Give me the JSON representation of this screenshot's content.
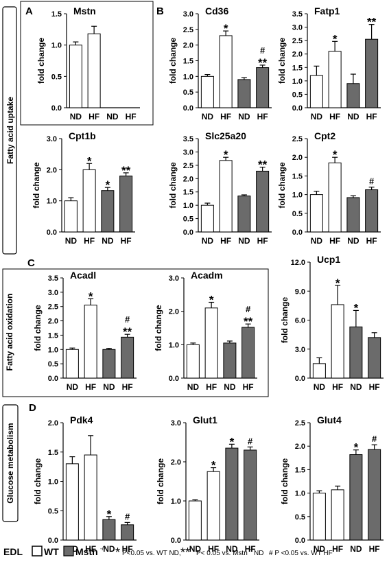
{
  "panel_letters": [
    "A",
    "B",
    "C",
    "D"
  ],
  "side_labels": {
    "fatty_acid_uptake": "Fatty acid uptake",
    "fatty_acid_oxidation": "Fatty acid oxidation",
    "glucose_metabolism": "Glucose metabolism"
  },
  "legend": {
    "tissue": "EDL",
    "wt": "WT",
    "mstn_ko": "Mstn",
    "mstn_ko_sup": "-/-",
    "note_star": "P<0.05 vs. WT ND,",
    "note_double_star": "P< 0.05 vs. Mstn",
    "note_double_star_sup": "-/-",
    "note_double_star_tail": " ND",
    "note_hash": "# P <0.05 vs. WT HF"
  },
  "colors": {
    "wt": "#ffffff",
    "mstn_ko": "#6b6b6b",
    "axis": "#000000",
    "text": "#000000"
  },
  "chart_data": [
    {
      "type": "bar",
      "title": "Mstn",
      "ylabel": "fold change",
      "categories": [
        "ND",
        "HF",
        "ND",
        "HF"
      ],
      "values": [
        1.0,
        1.18,
        null,
        null
      ],
      "errors": [
        0.05,
        0.12,
        null,
        null
      ],
      "groups": [
        "wt",
        "wt",
        "mstn_ko",
        "mstn_ko"
      ],
      "annotations": [
        "",
        "",
        "",
        ""
      ],
      "ylim": [
        0,
        1.5
      ],
      "ticks": [
        "0.0",
        "0.5",
        "1.0",
        "1.5"
      ]
    },
    {
      "type": "bar",
      "title": "Cd36",
      "ylabel": "fold change",
      "categories": [
        "ND",
        "HF",
        "ND",
        "HF"
      ],
      "values": [
        1.0,
        2.3,
        0.9,
        1.28
      ],
      "errors": [
        0.06,
        0.15,
        0.06,
        0.08
      ],
      "groups": [
        "wt",
        "wt",
        "mstn_ko",
        "mstn_ko"
      ],
      "annotations": [
        "",
        "*",
        "",
        "#\n**"
      ],
      "ylim": [
        0,
        3.0
      ],
      "ticks": [
        "0.0",
        "0.5",
        "1.0",
        "1.5",
        "2.0",
        "2.5",
        "3.0"
      ]
    },
    {
      "type": "bar",
      "title": "Fatp1",
      "ylabel": "fold change",
      "categories": [
        "ND",
        "HF",
        "ND",
        "HF"
      ],
      "values": [
        1.2,
        2.1,
        0.9,
        2.55
      ],
      "errors": [
        0.35,
        0.37,
        0.35,
        0.55
      ],
      "groups": [
        "wt",
        "wt",
        "mstn_ko",
        "mstn_ko"
      ],
      "annotations": [
        "",
        "*",
        "",
        "**"
      ],
      "ylim": [
        0,
        3.5
      ],
      "ticks": [
        "0.0",
        "0.5",
        "1.0",
        "1.5",
        "2.0",
        "2.5",
        "3.0",
        "3.5"
      ]
    },
    {
      "type": "bar",
      "title": "Cpt1b",
      "ylabel": "fold change",
      "categories": [
        "ND",
        "HF",
        "ND",
        "HF"
      ],
      "values": [
        1.0,
        2.0,
        1.33,
        1.8
      ],
      "errors": [
        0.1,
        0.2,
        0.1,
        0.1
      ],
      "groups": [
        "wt",
        "wt",
        "mstn_ko",
        "mstn_ko"
      ],
      "annotations": [
        "",
        "*",
        "*",
        "**"
      ],
      "ylim": [
        0,
        3.0
      ],
      "ticks": [
        "0.0",
        "1.0",
        "2.0",
        "3.0"
      ]
    },
    {
      "type": "bar",
      "title": "Slc25a20",
      "ylabel": "fold change",
      "categories": [
        "ND",
        "HF",
        "ND",
        "HF"
      ],
      "values": [
        1.0,
        2.68,
        1.35,
        2.28
      ],
      "errors": [
        0.08,
        0.12,
        0.04,
        0.15
      ],
      "groups": [
        "wt",
        "wt",
        "mstn_ko",
        "mstn_ko"
      ],
      "annotations": [
        "",
        "*",
        "",
        "**"
      ],
      "ylim": [
        0,
        3.5
      ],
      "ticks": [
        "0.0",
        "0.5",
        "1.0",
        "1.5",
        "2.0",
        "2.5",
        "3.0",
        "3.5"
      ]
    },
    {
      "type": "bar",
      "title": "Cpt2",
      "ylabel": "fold change",
      "categories": [
        "ND",
        "HF",
        "ND",
        "HF"
      ],
      "values": [
        1.0,
        1.85,
        0.92,
        1.13
      ],
      "errors": [
        0.09,
        0.15,
        0.05,
        0.07
      ],
      "groups": [
        "wt",
        "wt",
        "mstn_ko",
        "mstn_ko"
      ],
      "annotations": [
        "",
        "*",
        "",
        "#"
      ],
      "ylim": [
        0,
        2.5
      ],
      "ticks": [
        "0.0",
        "0.5",
        "1.0",
        "1.5",
        "2.0",
        "2.5"
      ]
    },
    {
      "type": "bar",
      "title": "Acadl",
      "ylabel": "fold change",
      "categories": [
        "ND",
        "HF",
        "ND",
        "HF"
      ],
      "values": [
        1.0,
        2.55,
        1.0,
        1.43
      ],
      "errors": [
        0.05,
        0.22,
        0.04,
        0.1
      ],
      "groups": [
        "wt",
        "wt",
        "mstn_ko",
        "mstn_ko"
      ],
      "annotations": [
        "",
        "*",
        "",
        "#\n**"
      ],
      "ylim": [
        0,
        3.5
      ],
      "ticks": [
        "0.0",
        "0.5",
        "1.0",
        "1.5",
        "2.0",
        "2.5",
        "3.0",
        "3.5"
      ]
    },
    {
      "type": "bar",
      "title": "Acadm",
      "ylabel": "fold change",
      "categories": [
        "ND",
        "HF",
        "ND",
        "HF"
      ],
      "values": [
        1.0,
        2.1,
        1.05,
        1.52
      ],
      "errors": [
        0.05,
        0.17,
        0.06,
        0.1
      ],
      "groups": [
        "wt",
        "wt",
        "mstn_ko",
        "mstn_ko"
      ],
      "annotations": [
        "",
        "*",
        "",
        "#\n**"
      ],
      "ylim": [
        0,
        3.0
      ],
      "ticks": [
        "0.0",
        "1.0",
        "2.0",
        "3.0"
      ]
    },
    {
      "type": "bar",
      "title": "Ucp1",
      "ylabel": "fold change",
      "categories": [
        "ND",
        "HF",
        "ND",
        "HF"
      ],
      "values": [
        1.5,
        7.6,
        5.3,
        4.2
      ],
      "errors": [
        0.6,
        2.0,
        1.7,
        0.5
      ],
      "groups": [
        "wt",
        "wt",
        "mstn_ko",
        "mstn_ko"
      ],
      "annotations": [
        "",
        "*",
        "*",
        ""
      ],
      "ylim": [
        0,
        12.0
      ],
      "ticks": [
        "0.0",
        "3.0",
        "6.0",
        "9.0",
        "12.0"
      ]
    },
    {
      "type": "bar",
      "title": "Pdk4",
      "ylabel": "fold change",
      "categories": [
        "ND",
        "HF",
        "ND",
        "HF"
      ],
      "values": [
        1.3,
        1.45,
        0.35,
        0.26
      ],
      "errors": [
        0.12,
        0.33,
        0.05,
        0.04
      ],
      "groups": [
        "wt",
        "wt",
        "mstn_ko",
        "mstn_ko"
      ],
      "annotations": [
        "",
        "",
        "*",
        "#"
      ],
      "ylim": [
        0,
        2.0
      ],
      "ticks": [
        "0.0",
        "0.5",
        "1.0",
        "1.5",
        "2.0"
      ]
    },
    {
      "type": "bar",
      "title": "Glut1",
      "ylabel": "fold change",
      "categories": [
        "ND",
        "HF",
        "ND",
        "HF"
      ],
      "values": [
        1.0,
        1.75,
        2.35,
        2.3
      ],
      "errors": [
        0.03,
        0.1,
        0.1,
        0.08
      ],
      "groups": [
        "wt",
        "wt",
        "mstn_ko",
        "mstn_ko"
      ],
      "annotations": [
        "",
        "*",
        "*",
        "#"
      ],
      "ylim": [
        0,
        3.0
      ],
      "ticks": [
        "0.0",
        "1.0",
        "2.0",
        "3.0"
      ]
    },
    {
      "type": "bar",
      "title": "Glut4",
      "ylabel": "fold change",
      "categories": [
        "ND",
        "HF",
        "ND",
        "HF"
      ],
      "values": [
        1.0,
        1.07,
        1.82,
        1.93
      ],
      "errors": [
        0.05,
        0.08,
        0.1,
        0.1
      ],
      "groups": [
        "wt",
        "wt",
        "mstn_ko",
        "mstn_ko"
      ],
      "annotations": [
        "",
        "",
        "*",
        "#"
      ],
      "ylim": [
        0,
        2.5
      ],
      "ticks": [
        "0.0",
        "0.5",
        "1.0",
        "1.5",
        "2.0",
        "2.5"
      ]
    }
  ]
}
